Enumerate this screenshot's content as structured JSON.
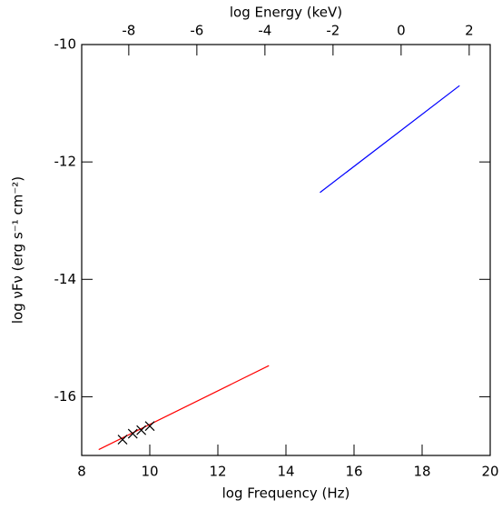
{
  "chart_data": {
    "type": "line",
    "xlabel": "log Frequency (Hz)",
    "ylabel": "log νFν (erg s⁻¹ cm⁻²)",
    "x2label": "log Energy (keV)",
    "xlim": [
      8,
      20
    ],
    "xticks": [
      8,
      10,
      12,
      14,
      16,
      18,
      20
    ],
    "x2lim": [
      -9.383,
      2.617
    ],
    "x2ticks": [
      -8,
      -6,
      -4,
      -2,
      0,
      2
    ],
    "ylim": [
      -17,
      -10
    ],
    "yticks": [
      -16,
      -14,
      -12,
      -10
    ],
    "series": [
      {
        "color": "#ff0000",
        "marker": "none",
        "x": [
          8.5,
          13.5
        ],
        "values": [
          -16.9,
          -15.47
        ]
      },
      {
        "color": "#0000ff",
        "marker": "none",
        "x": [
          15,
          19.1
        ],
        "values": [
          -12.52,
          -10.7
        ]
      },
      {
        "color": "#000000",
        "marker": "x",
        "x": [
          9.2,
          9.5,
          9.75,
          10
        ],
        "values": [
          -16.73,
          -16.63,
          -16.57,
          -16.5
        ]
      }
    ]
  }
}
